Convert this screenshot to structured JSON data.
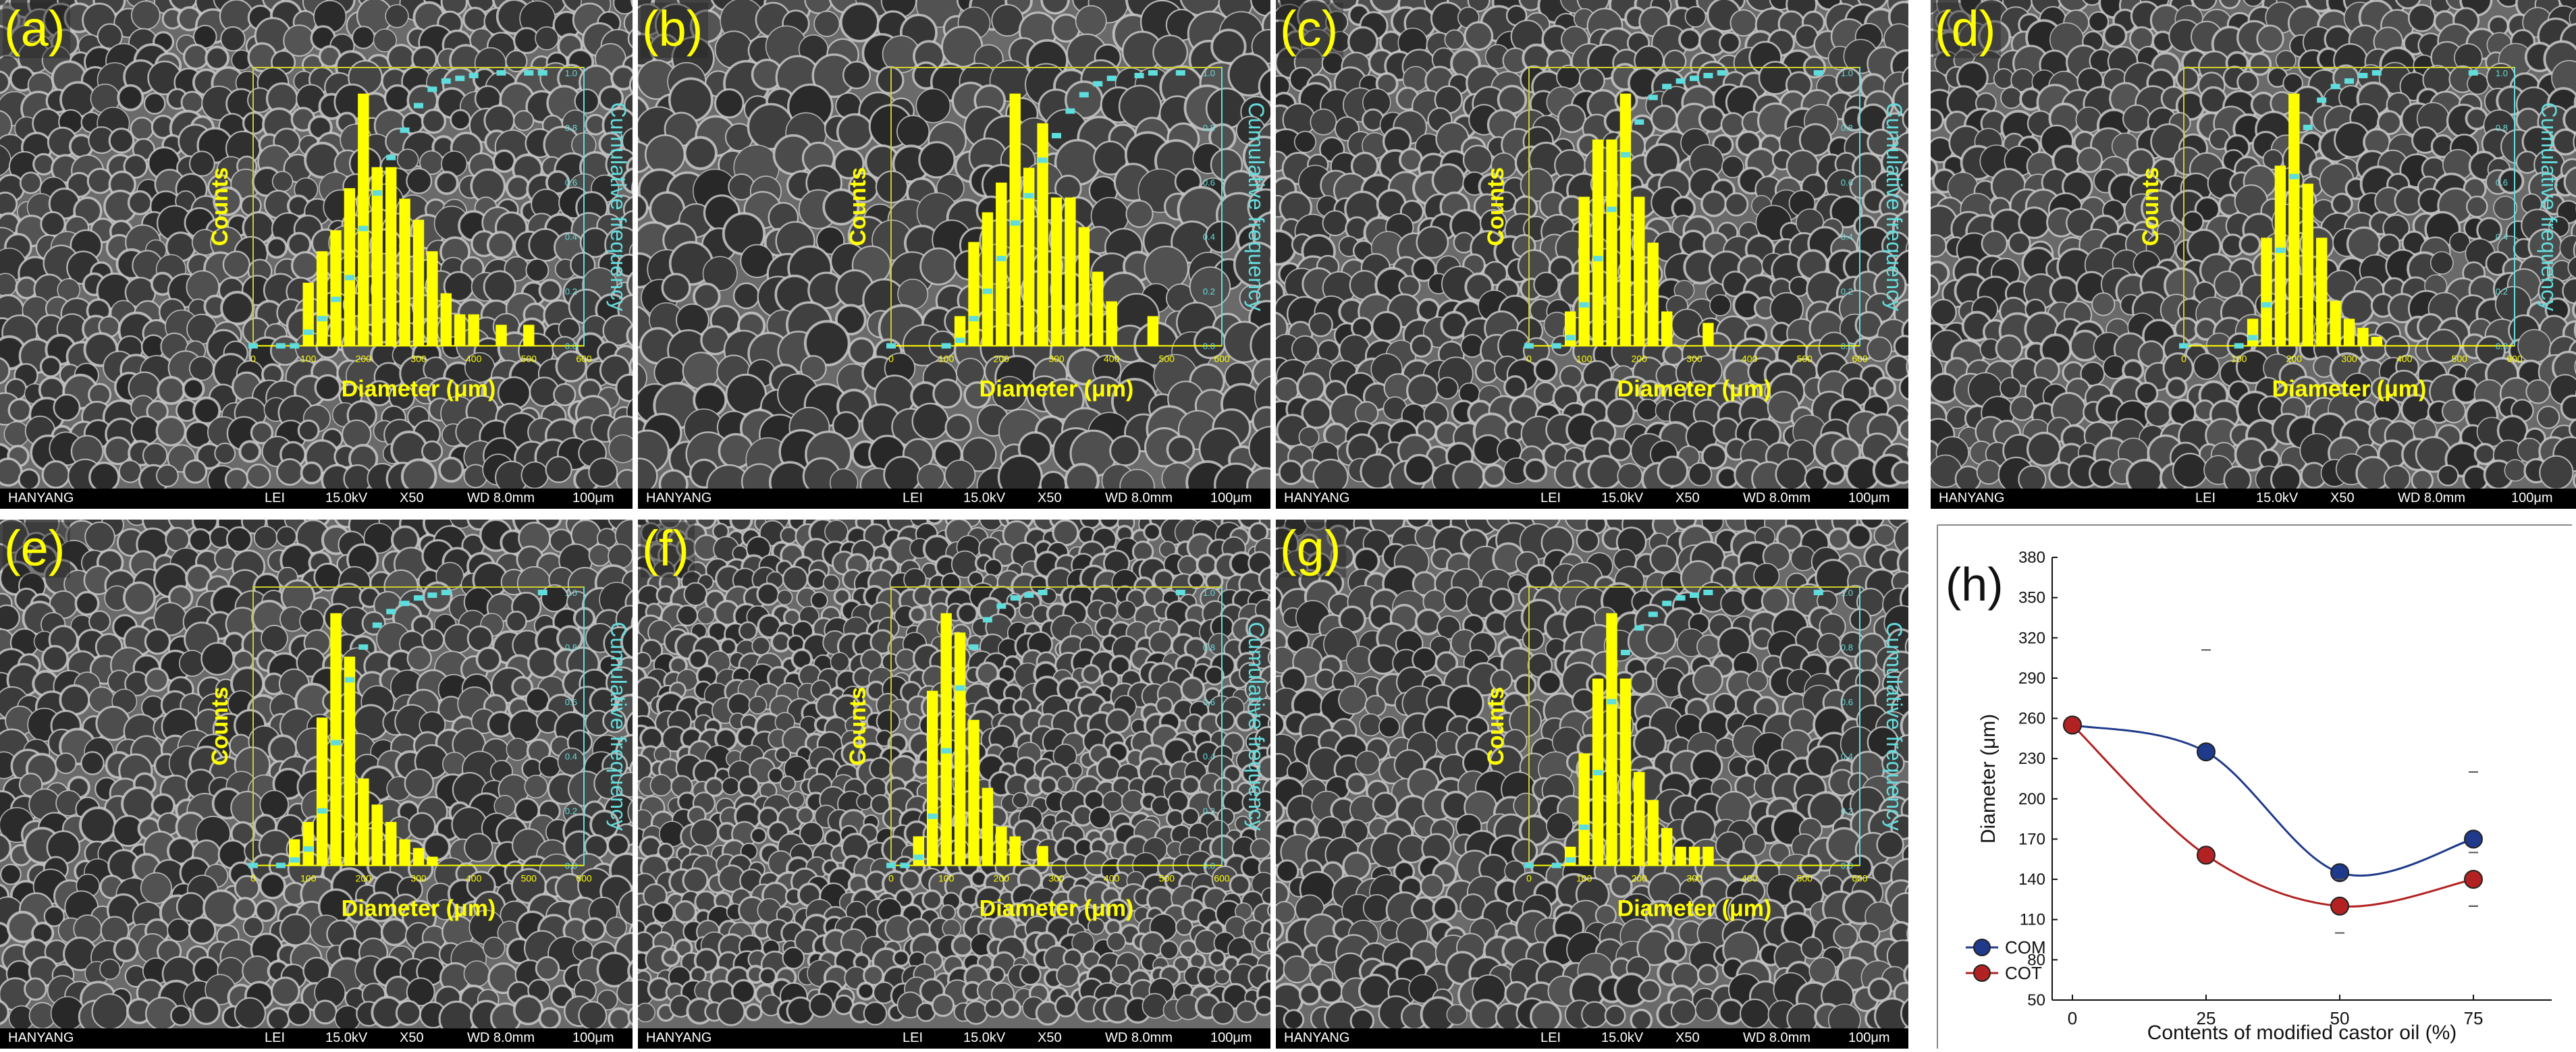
{
  "chart_data": [
    {
      "type": "bar",
      "panel_label": "(a)",
      "xlabel": "Diameter (μm)",
      "ylabel": "Counts",
      "y2label": "Cumulative frequency",
      "xlim": [
        0,
        600
      ],
      "x_ticks": [
        "0",
        "100",
        "200",
        "300",
        "400",
        "500",
        "600"
      ],
      "y2_ticks": [
        "0.0",
        "0.2",
        "0.4",
        "0.6",
        "0.8",
        "1.0"
      ],
      "bins": [
        {
          "x": 100,
          "count": 6
        },
        {
          "x": 125,
          "count": 9
        },
        {
          "x": 150,
          "count": 11
        },
        {
          "x": 175,
          "count": 15
        },
        {
          "x": 200,
          "count": 24
        },
        {
          "x": 225,
          "count": 17
        },
        {
          "x": 250,
          "count": 17
        },
        {
          "x": 275,
          "count": 14
        },
        {
          "x": 300,
          "count": 12
        },
        {
          "x": 325,
          "count": 9
        },
        {
          "x": 350,
          "count": 5
        },
        {
          "x": 375,
          "count": 3
        },
        {
          "x": 400,
          "count": 3
        },
        {
          "x": 450,
          "count": 2
        },
        {
          "x": 500,
          "count": 2
        }
      ],
      "cumulative": [
        [
          0,
          0.0
        ],
        [
          50,
          0.0
        ],
        [
          75,
          0.0
        ],
        [
          100,
          0.05
        ],
        [
          125,
          0.1
        ],
        [
          150,
          0.17
        ],
        [
          175,
          0.25
        ],
        [
          200,
          0.43
        ],
        [
          225,
          0.56
        ],
        [
          250,
          0.69
        ],
        [
          275,
          0.79
        ],
        [
          300,
          0.88
        ],
        [
          325,
          0.94
        ],
        [
          350,
          0.97
        ],
        [
          375,
          0.98
        ],
        [
          400,
          0.99
        ],
        [
          450,
          1.0
        ],
        [
          500,
          1.0
        ],
        [
          525,
          1.0
        ]
      ]
    },
    {
      "type": "bar",
      "panel_label": "(b)",
      "xlabel": "Diameter (μm)",
      "ylabel": "Counts",
      "y2label": "Cumulative frequency",
      "xlim": [
        0,
        600
      ],
      "x_ticks": [
        "0",
        "100",
        "200",
        "300",
        "400",
        "500",
        "600"
      ],
      "y2_ticks": [
        "0.0",
        "0.2",
        "0.4",
        "0.6",
        "0.8",
        "1.0"
      ],
      "bins": [
        {
          "x": 125,
          "count": 2
        },
        {
          "x": 150,
          "count": 7
        },
        {
          "x": 175,
          "count": 9
        },
        {
          "x": 200,
          "count": 11
        },
        {
          "x": 225,
          "count": 17
        },
        {
          "x": 250,
          "count": 12
        },
        {
          "x": 275,
          "count": 15
        },
        {
          "x": 300,
          "count": 10
        },
        {
          "x": 325,
          "count": 10
        },
        {
          "x": 350,
          "count": 8
        },
        {
          "x": 375,
          "count": 5
        },
        {
          "x": 400,
          "count": 3
        },
        {
          "x": 475,
          "count": 2
        }
      ],
      "cumulative": [
        [
          0,
          0.0
        ],
        [
          100,
          0.0
        ],
        [
          125,
          0.02
        ],
        [
          150,
          0.1
        ],
        [
          175,
          0.2
        ],
        [
          200,
          0.32
        ],
        [
          225,
          0.45
        ],
        [
          250,
          0.55
        ],
        [
          275,
          0.68
        ],
        [
          300,
          0.77
        ],
        [
          325,
          0.86
        ],
        [
          350,
          0.92
        ],
        [
          375,
          0.96
        ],
        [
          400,
          0.98
        ],
        [
          450,
          0.99
        ],
        [
          475,
          1.0
        ],
        [
          525,
          1.0
        ]
      ]
    },
    {
      "type": "bar",
      "panel_label": "(c)",
      "xlabel": "Diameter (μm)",
      "ylabel": "Counts",
      "y2label": "Cumulative frequency",
      "xlim": [
        0,
        600
      ],
      "x_ticks": [
        "0",
        "100",
        "200",
        "300",
        "400",
        "500",
        "600"
      ],
      "y2_ticks": [
        "0.0",
        "0.2",
        "0.4",
        "0.6",
        "0.8",
        "1.0"
      ],
      "bins": [
        {
          "x": 75,
          "count": 3
        },
        {
          "x": 100,
          "count": 13
        },
        {
          "x": 125,
          "count": 18
        },
        {
          "x": 150,
          "count": 18
        },
        {
          "x": 175,
          "count": 22
        },
        {
          "x": 200,
          "count": 13
        },
        {
          "x": 225,
          "count": 9
        },
        {
          "x": 250,
          "count": 3
        },
        {
          "x": 325,
          "count": 2
        }
      ],
      "cumulative": [
        [
          0,
          0.0
        ],
        [
          50,
          0.0
        ],
        [
          75,
          0.03
        ],
        [
          100,
          0.15
        ],
        [
          125,
          0.32
        ],
        [
          150,
          0.5
        ],
        [
          175,
          0.7
        ],
        [
          200,
          0.82
        ],
        [
          225,
          0.91
        ],
        [
          250,
          0.95
        ],
        [
          275,
          0.97
        ],
        [
          300,
          0.98
        ],
        [
          325,
          0.99
        ],
        [
          350,
          1.0
        ],
        [
          525,
          1.0
        ]
      ]
    },
    {
      "type": "bar",
      "panel_label": "(d)",
      "xlabel": "Diameter (μm)",
      "ylabel": "Counts",
      "y2label": "Cumulative frequency",
      "xlim": [
        0,
        600
      ],
      "x_ticks": [
        "0",
        "100",
        "200",
        "300",
        "400",
        "500",
        "600"
      ],
      "y2_ticks": [
        "0.0",
        "0.2",
        "0.4",
        "0.6",
        "0.8",
        "1.0"
      ],
      "bins": [
        {
          "x": 125,
          "count": 3
        },
        {
          "x": 150,
          "count": 12
        },
        {
          "x": 175,
          "count": 20
        },
        {
          "x": 200,
          "count": 28
        },
        {
          "x": 225,
          "count": 18
        },
        {
          "x": 250,
          "count": 12
        },
        {
          "x": 275,
          "count": 5
        },
        {
          "x": 300,
          "count": 3
        },
        {
          "x": 325,
          "count": 2
        },
        {
          "x": 350,
          "count": 1
        }
      ],
      "cumulative": [
        [
          0,
          0.0
        ],
        [
          100,
          0.0
        ],
        [
          125,
          0.03
        ],
        [
          150,
          0.15
        ],
        [
          175,
          0.35
        ],
        [
          200,
          0.62
        ],
        [
          225,
          0.8
        ],
        [
          250,
          0.9
        ],
        [
          275,
          0.95
        ],
        [
          300,
          0.97
        ],
        [
          325,
          0.99
        ],
        [
          350,
          1.0
        ],
        [
          525,
          1.0
        ]
      ]
    },
    {
      "type": "bar",
      "panel_label": "(e)",
      "xlabel": "Diameter (μm)",
      "ylabel": "Counts",
      "y2label": "Cumulative frequency",
      "xlim": [
        0,
        600
      ],
      "x_ticks": [
        "0",
        "100",
        "200",
        "300",
        "400",
        "500",
        "600"
      ],
      "y2_ticks": [
        "0.0",
        "0.2",
        "0.4",
        "0.6",
        "0.8",
        "1.0"
      ],
      "bins": [
        {
          "x": 75,
          "count": 3
        },
        {
          "x": 100,
          "count": 5
        },
        {
          "x": 125,
          "count": 17
        },
        {
          "x": 150,
          "count": 29
        },
        {
          "x": 175,
          "count": 24
        },
        {
          "x": 200,
          "count": 10
        },
        {
          "x": 225,
          "count": 7
        },
        {
          "x": 250,
          "count": 5
        },
        {
          "x": 275,
          "count": 3
        },
        {
          "x": 300,
          "count": 2
        },
        {
          "x": 325,
          "count": 1
        }
      ],
      "cumulative": [
        [
          0,
          0.0
        ],
        [
          50,
          0.0
        ],
        [
          75,
          0.02
        ],
        [
          100,
          0.06
        ],
        [
          125,
          0.2
        ],
        [
          150,
          0.45
        ],
        [
          175,
          0.68
        ],
        [
          200,
          0.8
        ],
        [
          225,
          0.88
        ],
        [
          250,
          0.93
        ],
        [
          275,
          0.96
        ],
        [
          300,
          0.98
        ],
        [
          325,
          0.99
        ],
        [
          350,
          1.0
        ],
        [
          525,
          1.0
        ]
      ]
    },
    {
      "type": "bar",
      "panel_label": "(f)",
      "xlabel": "Diameter (μm)",
      "ylabel": "Counts",
      "y2label": "Cumulative frequency",
      "xlim": [
        0,
        600
      ],
      "x_ticks": [
        "0",
        "100",
        "200",
        "300",
        "400",
        "500",
        "600"
      ],
      "y2_ticks": [
        "0.0",
        "0.2",
        "0.4",
        "0.6",
        "0.8",
        "1.0"
      ],
      "bins": [
        {
          "x": 50,
          "count": 3
        },
        {
          "x": 75,
          "count": 18
        },
        {
          "x": 100,
          "count": 26
        },
        {
          "x": 125,
          "count": 24
        },
        {
          "x": 150,
          "count": 15
        },
        {
          "x": 175,
          "count": 8
        },
        {
          "x": 200,
          "count": 4
        },
        {
          "x": 225,
          "count": 3
        },
        {
          "x": 275,
          "count": 2
        }
      ],
      "cumulative": [
        [
          0,
          0.0
        ],
        [
          25,
          0.0
        ],
        [
          50,
          0.03
        ],
        [
          75,
          0.18
        ],
        [
          100,
          0.42
        ],
        [
          125,
          0.65
        ],
        [
          150,
          0.8
        ],
        [
          175,
          0.9
        ],
        [
          200,
          0.95
        ],
        [
          225,
          0.98
        ],
        [
          250,
          0.99
        ],
        [
          275,
          1.0
        ],
        [
          525,
          1.0
        ]
      ]
    },
    {
      "type": "bar",
      "panel_label": "(g)",
      "xlabel": "Diameter (μm)",
      "ylabel": "Counts",
      "y2label": "Cumulative frequency",
      "xlim": [
        0,
        600
      ],
      "x_ticks": [
        "0",
        "100",
        "200",
        "300",
        "400",
        "500",
        "600"
      ],
      "y2_ticks": [
        "0.0",
        "0.2",
        "0.4",
        "0.6",
        "0.8",
        "1.0"
      ],
      "bins": [
        {
          "x": 75,
          "count": 2
        },
        {
          "x": 100,
          "count": 12
        },
        {
          "x": 125,
          "count": 20
        },
        {
          "x": 150,
          "count": 27
        },
        {
          "x": 175,
          "count": 20
        },
        {
          "x": 200,
          "count": 10
        },
        {
          "x": 225,
          "count": 7
        },
        {
          "x": 250,
          "count": 4
        },
        {
          "x": 275,
          "count": 2
        },
        {
          "x": 300,
          "count": 2
        },
        {
          "x": 325,
          "count": 2
        }
      ],
      "cumulative": [
        [
          0,
          0.0
        ],
        [
          50,
          0.0
        ],
        [
          75,
          0.02
        ],
        [
          100,
          0.14
        ],
        [
          125,
          0.34
        ],
        [
          150,
          0.6
        ],
        [
          175,
          0.78
        ],
        [
          200,
          0.87
        ],
        [
          225,
          0.92
        ],
        [
          250,
          0.96
        ],
        [
          275,
          0.98
        ],
        [
          300,
          0.99
        ],
        [
          325,
          1.0
        ],
        [
          525,
          1.0
        ]
      ]
    },
    {
      "type": "line",
      "panel_label": "(h)",
      "xlabel": "Contents of modified castor oil (%)",
      "ylabel": "Diameter (μm)",
      "categories": [
        "0",
        "25",
        "50",
        "75"
      ],
      "ylim": [
        50,
        380
      ],
      "y_ticks": [
        "50",
        "80",
        "110",
        "140",
        "170",
        "200",
        "230",
        "260",
        "290",
        "320",
        "350",
        "380"
      ],
      "legend_position": "bottom-left",
      "series": [
        {
          "name": "COM",
          "color": "#1f3a8a",
          "values": [
            255,
            235,
            145,
            170
          ],
          "error": [
            0,
            76,
            0,
            50
          ]
        },
        {
          "name": "COT",
          "color": "#b22222",
          "values": [
            255,
            158,
            120,
            140
          ],
          "error": [
            0,
            0,
            20,
            20
          ]
        }
      ]
    }
  ],
  "sem_info": {
    "org": "HANYANG",
    "detector": "LEI",
    "voltage": "15.0kV",
    "mag": "X50",
    "wd": "WD 8.0mm",
    "scale": "100μm"
  }
}
